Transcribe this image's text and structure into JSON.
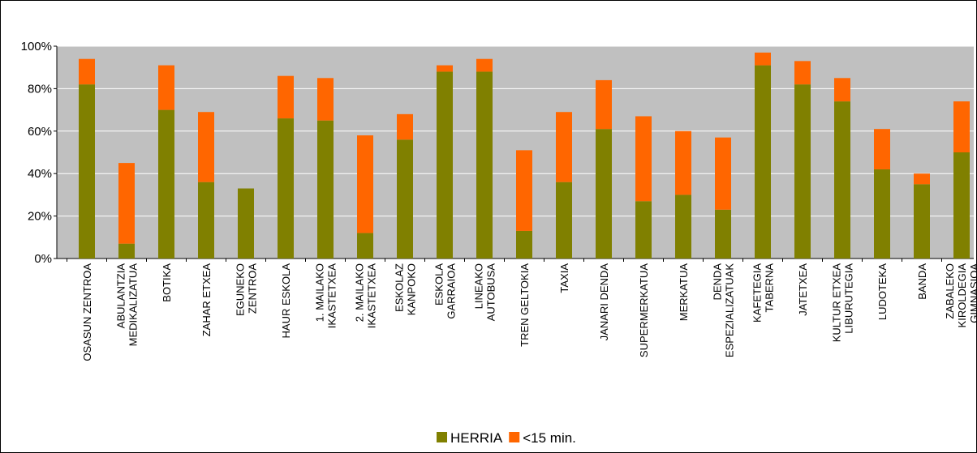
{
  "chart_data": {
    "type": "stacked_bar",
    "categories": [
      "OSASUN ZENTROA",
      "ABULANTZIA\nMEDIKALIZATUA",
      "BOTIKA",
      "ZAHAR ETXEA",
      "EGUNEKO\nZENTROA",
      "HAUR ESKOLA",
      "1. MAILAKO\nIKASTETXEA",
      "2. MAILAKO\nIKASTETXEA",
      "ESKOLAZ\nKANPOKO",
      "ESKOLA\nGARRAIOA",
      "LINEAKO\nAUTOBUSA",
      "TREN GELTOKIA",
      "TAXIA",
      "JANARI DENDA",
      "SUPERMERKATUA",
      "MERKATUA",
      "DENDA\nESPEZIALIZATUAK",
      "KAFETEGIA\nTABERNA",
      "JATETXEA",
      "KULTUR ETXEA\nLIBURUTEGIA",
      "LUDOTEKA",
      "BANDA",
      "ZABALEKO\nKIROLDEGIA\nGIMNASIOA"
    ],
    "series": [
      {
        "name": "HERRIA",
        "color": "#808000",
        "values": [
          82,
          7,
          70,
          36,
          33,
          66,
          65,
          12,
          56,
          88,
          88,
          13,
          36,
          61,
          27,
          30,
          23,
          91,
          82,
          74,
          42,
          35,
          50
        ]
      },
      {
        "name": "<15 min.",
        "color": "#ff6600",
        "values": [
          12,
          38,
          21,
          33,
          0,
          20,
          20,
          46,
          12,
          3,
          6,
          38,
          33,
          23,
          40,
          30,
          34,
          6,
          11,
          11,
          19,
          5,
          24
        ]
      }
    ],
    "ylim": [
      0,
      100
    ],
    "yticks": [
      {
        "value": 0,
        "label": "0%"
      },
      {
        "value": 20,
        "label": "20%"
      },
      {
        "value": 40,
        "label": "40%"
      },
      {
        "value": 60,
        "label": "60%"
      },
      {
        "value": 80,
        "label": "80%"
      },
      {
        "value": 100,
        "label": "100%"
      }
    ],
    "grid": true,
    "legend": "bottom"
  }
}
